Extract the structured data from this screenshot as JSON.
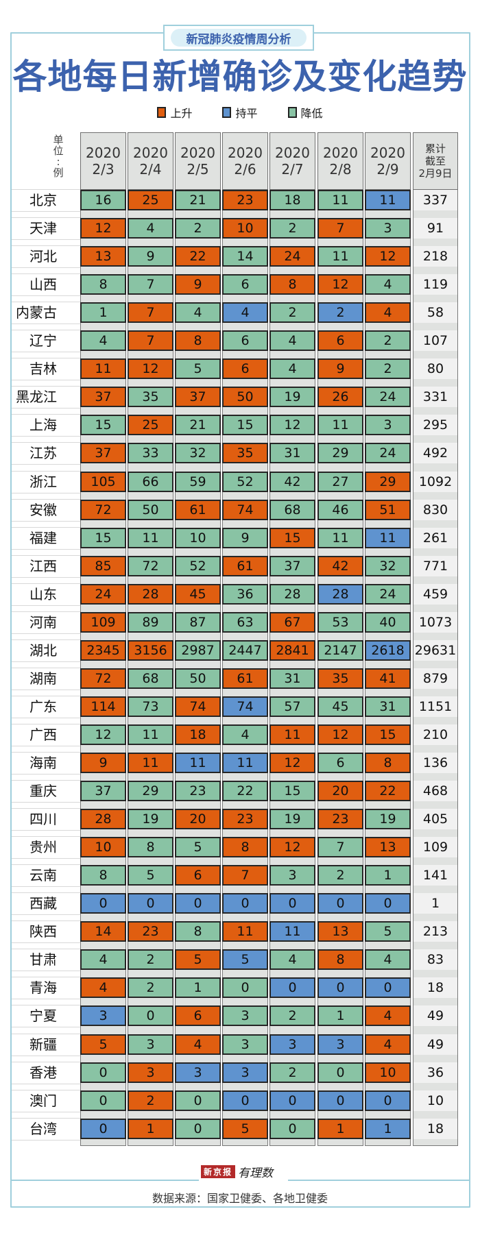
{
  "header": {
    "badge": "新冠肺炎疫情周分析",
    "title": "各地每日新增确诊及变化趋势"
  },
  "legend": [
    {
      "key": "up",
      "label": "上升",
      "color": "#e05e10"
    },
    {
      "key": "flat",
      "label": "持平",
      "color": "#5f93cf"
    },
    {
      "key": "down",
      "label": "降低",
      "color": "#89c3a4"
    }
  ],
  "unit_label": [
    "单",
    "位",
    ":",
    "例"
  ],
  "columns": [
    {
      "year": "2020",
      "date": "2/3"
    },
    {
      "year": "2020",
      "date": "2/4"
    },
    {
      "year": "2020",
      "date": "2/5"
    },
    {
      "year": "2020",
      "date": "2/6"
    },
    {
      "year": "2020",
      "date": "2/7"
    },
    {
      "year": "2020",
      "date": "2/8"
    },
    {
      "year": "2020",
      "date": "2/9"
    }
  ],
  "total_header": [
    "累计",
    "截至",
    "2月9日"
  ],
  "footer": {
    "logo_box": "新京报",
    "logo_text": "有理数",
    "source": "数据来源：国家卫健委、各地卫健委"
  },
  "chart_data": {
    "type": "table",
    "title": "各地每日新增确诊及变化趋势",
    "subtitle": "新冠肺炎疫情周分析",
    "unit": "例",
    "categories": [
      "2020/2/3",
      "2020/2/4",
      "2020/2/5",
      "2020/2/6",
      "2020/2/7",
      "2020/2/8",
      "2020/2/9"
    ],
    "legend": {
      "U": "上升",
      "F": "持平",
      "D": "降低"
    },
    "rows": [
      {
        "region": "北京",
        "values": [
          16,
          25,
          21,
          23,
          18,
          11,
          11
        ],
        "trend": [
          "D",
          "U",
          "D",
          "U",
          "D",
          "D",
          "F"
        ],
        "total": 337
      },
      {
        "region": "天津",
        "values": [
          12,
          4,
          2,
          10,
          2,
          7,
          3
        ],
        "trend": [
          "U",
          "D",
          "D",
          "U",
          "D",
          "U",
          "D"
        ],
        "total": 91
      },
      {
        "region": "河北",
        "values": [
          13,
          9,
          22,
          14,
          24,
          11,
          12
        ],
        "trend": [
          "U",
          "D",
          "U",
          "D",
          "U",
          "D",
          "U"
        ],
        "total": 218
      },
      {
        "region": "山西",
        "values": [
          8,
          7,
          9,
          6,
          8,
          12,
          4
        ],
        "trend": [
          "D",
          "D",
          "U",
          "D",
          "U",
          "U",
          "D"
        ],
        "total": 119
      },
      {
        "region": "内蒙古",
        "values": [
          1,
          7,
          4,
          4,
          2,
          2,
          4
        ],
        "trend": [
          "D",
          "U",
          "D",
          "F",
          "D",
          "F",
          "U"
        ],
        "total": 58
      },
      {
        "region": "辽宁",
        "values": [
          4,
          7,
          8,
          6,
          4,
          6,
          2
        ],
        "trend": [
          "D",
          "U",
          "U",
          "D",
          "D",
          "U",
          "D"
        ],
        "total": 107
      },
      {
        "region": "吉林",
        "values": [
          11,
          12,
          5,
          6,
          4,
          9,
          2
        ],
        "trend": [
          "U",
          "U",
          "D",
          "U",
          "D",
          "U",
          "D"
        ],
        "total": 80
      },
      {
        "region": "黑龙江",
        "values": [
          37,
          35,
          37,
          50,
          19,
          26,
          24
        ],
        "trend": [
          "U",
          "D",
          "U",
          "U",
          "D",
          "U",
          "D"
        ],
        "total": 331
      },
      {
        "region": "上海",
        "values": [
          15,
          25,
          21,
          15,
          12,
          11,
          3
        ],
        "trend": [
          "D",
          "U",
          "D",
          "D",
          "D",
          "D",
          "D"
        ],
        "total": 295
      },
      {
        "region": "江苏",
        "values": [
          37,
          33,
          32,
          35,
          31,
          29,
          24
        ],
        "trend": [
          "U",
          "D",
          "D",
          "U",
          "D",
          "D",
          "D"
        ],
        "total": 492
      },
      {
        "region": "浙江",
        "values": [
          105,
          66,
          59,
          52,
          42,
          27,
          29
        ],
        "trend": [
          "U",
          "D",
          "D",
          "D",
          "D",
          "D",
          "U"
        ],
        "total": 1092
      },
      {
        "region": "安徽",
        "values": [
          72,
          50,
          61,
          74,
          68,
          46,
          51
        ],
        "trend": [
          "U",
          "D",
          "U",
          "U",
          "D",
          "D",
          "U"
        ],
        "total": 830
      },
      {
        "region": "福建",
        "values": [
          15,
          11,
          10,
          9,
          15,
          11,
          11
        ],
        "trend": [
          "D",
          "D",
          "D",
          "D",
          "U",
          "D",
          "F"
        ],
        "total": 261
      },
      {
        "region": "江西",
        "values": [
          85,
          72,
          52,
          61,
          37,
          42,
          32
        ],
        "trend": [
          "U",
          "D",
          "D",
          "U",
          "D",
          "U",
          "D"
        ],
        "total": 771
      },
      {
        "region": "山东",
        "values": [
          24,
          28,
          45,
          36,
          28,
          28,
          24
        ],
        "trend": [
          "U",
          "U",
          "U",
          "D",
          "D",
          "F",
          "D"
        ],
        "total": 459
      },
      {
        "region": "河南",
        "values": [
          109,
          89,
          87,
          63,
          67,
          53,
          40
        ],
        "trend": [
          "U",
          "D",
          "D",
          "D",
          "U",
          "D",
          "D"
        ],
        "total": 1073
      },
      {
        "region": "湖北",
        "values": [
          2345,
          3156,
          2987,
          2447,
          2841,
          2147,
          2618
        ],
        "trend": [
          "U",
          "U",
          "D",
          "D",
          "U",
          "D",
          "F"
        ],
        "total": 29631
      },
      {
        "region": "湖南",
        "values": [
          72,
          68,
          50,
          61,
          31,
          35,
          41
        ],
        "trend": [
          "U",
          "D",
          "D",
          "U",
          "D",
          "U",
          "U"
        ],
        "total": 879
      },
      {
        "region": "广东",
        "values": [
          114,
          73,
          74,
          74,
          57,
          45,
          31
        ],
        "trend": [
          "U",
          "D",
          "U",
          "F",
          "D",
          "D",
          "D"
        ],
        "total": 1151
      },
      {
        "region": "广西",
        "values": [
          12,
          11,
          18,
          4,
          11,
          12,
          15
        ],
        "trend": [
          "D",
          "D",
          "U",
          "D",
          "U",
          "U",
          "U"
        ],
        "total": 210
      },
      {
        "region": "海南",
        "values": [
          9,
          11,
          11,
          11,
          12,
          6,
          8
        ],
        "trend": [
          "U",
          "U",
          "F",
          "F",
          "U",
          "D",
          "U"
        ],
        "total": 136
      },
      {
        "region": "重庆",
        "values": [
          37,
          29,
          23,
          22,
          15,
          20,
          22
        ],
        "trend": [
          "D",
          "D",
          "D",
          "D",
          "D",
          "U",
          "U"
        ],
        "total": 468
      },
      {
        "region": "四川",
        "values": [
          28,
          19,
          20,
          23,
          19,
          23,
          19
        ],
        "trend": [
          "U",
          "D",
          "U",
          "U",
          "D",
          "U",
          "D"
        ],
        "total": 405
      },
      {
        "region": "贵州",
        "values": [
          10,
          8,
          5,
          8,
          12,
          7,
          13
        ],
        "trend": [
          "U",
          "D",
          "D",
          "U",
          "U",
          "D",
          "U"
        ],
        "total": 109
      },
      {
        "region": "云南",
        "values": [
          8,
          5,
          6,
          7,
          3,
          2,
          1
        ],
        "trend": [
          "D",
          "D",
          "U",
          "U",
          "D",
          "D",
          "D"
        ],
        "total": 141
      },
      {
        "region": "西藏",
        "values": [
          0,
          0,
          0,
          0,
          0,
          0,
          0
        ],
        "trend": [
          "F",
          "F",
          "F",
          "F",
          "F",
          "F",
          "F"
        ],
        "total": 1
      },
      {
        "region": "陕西",
        "values": [
          14,
          23,
          8,
          11,
          11,
          13,
          5
        ],
        "trend": [
          "U",
          "U",
          "D",
          "U",
          "F",
          "U",
          "D"
        ],
        "total": 213
      },
      {
        "region": "甘肃",
        "values": [
          4,
          2,
          5,
          5,
          4,
          8,
          4
        ],
        "trend": [
          "D",
          "D",
          "U",
          "F",
          "D",
          "U",
          "D"
        ],
        "total": 83
      },
      {
        "region": "青海",
        "values": [
          4,
          2,
          1,
          0,
          0,
          0,
          0
        ],
        "trend": [
          "U",
          "D",
          "D",
          "D",
          "F",
          "F",
          "F"
        ],
        "total": 18
      },
      {
        "region": "宁夏",
        "values": [
          3,
          0,
          6,
          3,
          2,
          1,
          4
        ],
        "trend": [
          "F",
          "D",
          "U",
          "D",
          "D",
          "D",
          "U"
        ],
        "total": 49
      },
      {
        "region": "新疆",
        "values": [
          5,
          3,
          4,
          3,
          3,
          3,
          4
        ],
        "trend": [
          "U",
          "D",
          "U",
          "D",
          "F",
          "F",
          "U"
        ],
        "total": 49
      },
      {
        "region": "香港",
        "values": [
          0,
          3,
          3,
          3,
          2,
          0,
          10
        ],
        "trend": [
          "D",
          "U",
          "F",
          "F",
          "D",
          "D",
          "U"
        ],
        "total": 36
      },
      {
        "region": "澳门",
        "values": [
          0,
          2,
          0,
          0,
          0,
          0,
          0
        ],
        "trend": [
          "D",
          "U",
          "D",
          "F",
          "F",
          "F",
          "F"
        ],
        "total": 10
      },
      {
        "region": "台湾",
        "values": [
          0,
          1,
          0,
          5,
          0,
          1,
          1
        ],
        "trend": [
          "F",
          "U",
          "D",
          "U",
          "D",
          "U",
          "F"
        ],
        "total": 18
      }
    ]
  }
}
